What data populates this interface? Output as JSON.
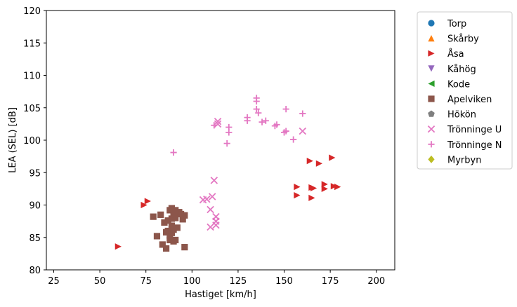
{
  "chart_data": {
    "type": "scatter",
    "xlabel": "Hastiget [km/h]",
    "ylabel": "LEA (SEL) [dB]",
    "xlim": [
      21,
      210
    ],
    "ylim": [
      80,
      120
    ],
    "xticks": [
      25,
      50,
      75,
      100,
      125,
      150,
      175,
      200
    ],
    "yticks": [
      80,
      85,
      90,
      95,
      100,
      105,
      110,
      115,
      120
    ],
    "grid": false,
    "legend_position": "outside-right",
    "series": [
      {
        "name": "Torp",
        "marker": "circle",
        "color": "#1f77b4",
        "points": []
      },
      {
        "name": "Skårby",
        "marker": "triangle-up",
        "color": "#ff7f0e",
        "points": []
      },
      {
        "name": "Åsa",
        "marker": "triangle-right",
        "color": "#d62728",
        "points": [
          [
            60,
            83.6
          ],
          [
            74,
            90.0
          ],
          [
            76,
            90.6
          ],
          [
            157,
            91.5
          ],
          [
            157,
            92.8
          ],
          [
            164,
            96.8
          ],
          [
            165,
            92.7
          ],
          [
            165,
            91.1
          ],
          [
            166,
            92.6
          ],
          [
            169,
            96.4
          ],
          [
            172,
            92.5
          ],
          [
            172,
            93.2
          ],
          [
            176,
            97.3
          ],
          [
            177,
            92.9
          ],
          [
            179,
            92.8
          ]
        ]
      },
      {
        "name": "Kåhög",
        "marker": "triangle-down",
        "color": "#9467bd",
        "points": []
      },
      {
        "name": "Kode",
        "marker": "triangle-left",
        "color": "#2ca02c",
        "points": []
      },
      {
        "name": "Apelviken",
        "marker": "square",
        "color": "#8c564b",
        "points": [
          [
            79,
            88.2
          ],
          [
            81,
            85.2
          ],
          [
            83,
            88.5
          ],
          [
            84,
            83.9
          ],
          [
            85,
            87.3
          ],
          [
            86,
            83.3
          ],
          [
            86,
            85.8
          ],
          [
            87,
            87.6
          ],
          [
            87,
            86.0
          ],
          [
            88,
            89.2
          ],
          [
            88,
            84.6
          ],
          [
            88,
            85.3
          ],
          [
            89,
            86.8
          ],
          [
            89,
            89.5
          ],
          [
            89,
            87.9
          ],
          [
            89,
            85.7
          ],
          [
            90,
            88.7
          ],
          [
            90,
            84.4
          ],
          [
            90,
            86.2
          ],
          [
            91,
            88.0
          ],
          [
            91,
            84.6
          ],
          [
            92,
            86.5
          ],
          [
            93,
            88.9
          ],
          [
            94,
            88.6
          ],
          [
            95,
            87.8
          ],
          [
            96,
            88.4
          ],
          [
            96,
            83.5
          ],
          [
            91,
            89.2
          ]
        ]
      },
      {
        "name": "Hökön",
        "marker": "pentagon",
        "color": "#7f7f7f",
        "points": []
      },
      {
        "name": "Trönninge U",
        "marker": "x",
        "color": "#e377c2",
        "points": [
          [
            106,
            90.8
          ],
          [
            108,
            90.9
          ],
          [
            110,
            89.3
          ],
          [
            110,
            86.6
          ],
          [
            111,
            91.3
          ],
          [
            112,
            93.8
          ],
          [
            113,
            88.2
          ],
          [
            113,
            87.5
          ],
          [
            113,
            86.9
          ],
          [
            114,
            102.9
          ],
          [
            114,
            102.5
          ],
          [
            160,
            101.4
          ]
        ]
      },
      {
        "name": "Trönninge N",
        "marker": "plus",
        "color": "#e377c2",
        "points": [
          [
            90,
            98.1
          ],
          [
            112,
            102.3
          ],
          [
            119,
            99.5
          ],
          [
            120,
            101.2
          ],
          [
            120,
            102.0
          ],
          [
            130,
            103.0
          ],
          [
            130,
            103.5
          ],
          [
            135,
            106.5
          ],
          [
            135,
            106.0
          ],
          [
            135,
            104.8
          ],
          [
            136,
            104.2
          ],
          [
            138,
            102.8
          ],
          [
            140,
            103.0
          ],
          [
            145,
            102.2
          ],
          [
            146,
            102.4
          ],
          [
            150,
            101.2
          ],
          [
            151,
            101.4
          ],
          [
            151,
            104.8
          ],
          [
            155,
            100.1
          ],
          [
            160,
            104.1
          ]
        ]
      },
      {
        "name": "Myrbyn",
        "marker": "diamond",
        "color": "#bcbd22",
        "points": []
      }
    ]
  }
}
